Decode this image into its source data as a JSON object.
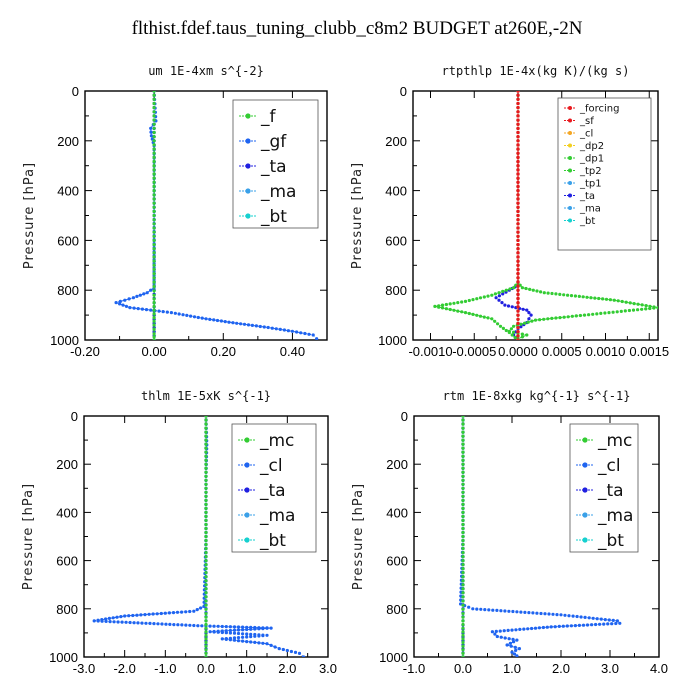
{
  "title": "flthist.fdef.taus_tuning_clubb_c8m2  BUDGET at260E,-2N",
  "colors": {
    "green": "#33cc33",
    "blue": "#1f64f0",
    "red": "#e8191e",
    "orange": "#f4a623",
    "yellow": "#f2cf22",
    "navy": "#2020e0",
    "cyan": "#16d0cf",
    "skyblue": "#3aa0e8"
  },
  "chart_data": [
    {
      "type": "line",
      "title": "um  1E-4xm s^{-2}",
      "ylabel": "Pressure [hPa]",
      "xlim": [
        -0.2,
        0.5
      ],
      "ylim": [
        1000,
        0
      ],
      "xticks": [
        "-0.20",
        "0.00",
        "0.20",
        "0.40"
      ],
      "xtick_values": [
        -0.2,
        0.0,
        0.2,
        0.4
      ],
      "yticks": [
        "0",
        "200",
        "400",
        "600",
        "800",
        "1000"
      ],
      "ytick_values": [
        0,
        200,
        400,
        600,
        800,
        1000
      ],
      "legend_size": "large",
      "series": [
        {
          "name": "_f",
          "color": "green",
          "x": [
            0.0,
            0.0,
            0.0,
            0.0,
            0.0,
            0.0,
            0.0,
            0.0,
            0.0,
            0.0,
            0.0,
            0.0,
            0.0,
            0.0
          ],
          "y": [
            0,
            50,
            150,
            250,
            350,
            450,
            550,
            650,
            750,
            820,
            880,
            940,
            975,
            1000
          ]
        },
        {
          "name": "_gf",
          "color": "blue",
          "x": [
            0.0,
            0.005,
            -0.01,
            -0.008,
            0.0,
            0.0,
            0.0,
            -0.02,
            -0.06,
            -0.11,
            -0.07,
            0.05,
            0.15,
            0.25,
            0.33,
            0.4,
            0.46,
            0.47
          ],
          "y": [
            0,
            120,
            150,
            180,
            220,
            500,
            790,
            810,
            830,
            850,
            870,
            890,
            915,
            935,
            950,
            965,
            980,
            995
          ]
        },
        {
          "name": "_ta",
          "color": "navy",
          "x": [
            0.0,
            0.0,
            0.0,
            0.0,
            0.0,
            0.0
          ],
          "y": [
            0,
            200,
            400,
            600,
            800,
            1000
          ]
        },
        {
          "name": "_ma",
          "color": "skyblue",
          "x": [
            0.0,
            0.0,
            0.0,
            0.0,
            0.0,
            0.0
          ],
          "y": [
            0,
            200,
            400,
            600,
            800,
            1000
          ]
        },
        {
          "name": "_bt",
          "color": "cyan",
          "x": [
            0.0,
            0.0,
            0.0,
            0.0,
            0.0,
            0.0
          ],
          "y": [
            0,
            200,
            400,
            600,
            800,
            1000
          ]
        }
      ]
    },
    {
      "type": "line",
      "title": "rtpthlp  1E-4x(kg K)/(kg s)",
      "ylabel": "Pressure [hPa]",
      "xlim": [
        -0.0012,
        0.0016
      ],
      "ylim": [
        1000,
        0
      ],
      "xticks": [
        "-0.0010",
        "-0.0005",
        "0.0000",
        "0.0005",
        "0.0010",
        "0.0015"
      ],
      "xtick_values": [
        -0.001,
        -0.0005,
        0.0,
        0.0005,
        0.001,
        0.0015
      ],
      "yticks": [
        "0",
        "200",
        "400",
        "600",
        "800",
        "1000"
      ],
      "ytick_values": [
        0,
        200,
        400,
        600,
        800,
        1000
      ],
      "legend_size": "small",
      "series": [
        {
          "name": "_forcing",
          "color": "red",
          "x": [
            0.0,
            0.0,
            0.0,
            0.0,
            0.0,
            0.0
          ],
          "y": [
            0,
            200,
            400,
            600,
            800,
            1000
          ]
        },
        {
          "name": "_sf",
          "color": "red",
          "x": [
            0.0,
            0.0,
            0.0,
            0.0,
            0.0,
            0.0
          ],
          "y": [
            0,
            200,
            400,
            600,
            800,
            1000
          ]
        },
        {
          "name": "_cl",
          "color": "orange",
          "x": [
            0.0,
            0.0,
            0.0,
            0.0,
            0.0,
            0.0
          ],
          "y": [
            0,
            200,
            400,
            600,
            800,
            1000
          ]
        },
        {
          "name": "_dp2",
          "color": "yellow",
          "x": [
            0.0,
            0.0,
            0.0,
            0.0,
            0.0,
            0.0
          ],
          "y": [
            0,
            200,
            400,
            600,
            800,
            1000
          ]
        },
        {
          "name": "_dp1",
          "color": "green",
          "x": [
            0.0,
            5e-05,
            0.0003,
            0.0011,
            0.0016,
            0.0009,
            0.0002,
            -5e-05,
            -0.0001,
            0.0001,
            0.0,
            0.0
          ],
          "y": [
            770,
            790,
            810,
            840,
            870,
            895,
            920,
            945,
            965,
            980,
            995,
            1000
          ]
        },
        {
          "name": "_tp2",
          "color": "green",
          "x": [
            0.0,
            -5e-05,
            -0.0003,
            -0.0006,
            -0.00095,
            -0.0006,
            -0.0003,
            -0.0002,
            -0.0001,
            0.0
          ],
          "y": [
            770,
            790,
            820,
            845,
            865,
            890,
            915,
            945,
            970,
            1000
          ]
        },
        {
          "name": "_tp1",
          "color": "skyblue",
          "x": [
            0.0,
            0.0,
            0.0,
            0.0,
            0.0,
            0.0
          ],
          "y": [
            0,
            200,
            400,
            600,
            800,
            1000
          ]
        },
        {
          "name": "_ta",
          "color": "navy",
          "x": [
            0.0,
            -0.0001,
            -0.00025,
            -0.00015,
            0.0001,
            0.00015,
            0.0001,
            0.0,
            -5e-05,
            0.0
          ],
          "y": [
            780,
            800,
            830,
            860,
            880,
            900,
            930,
            955,
            980,
            1000
          ]
        },
        {
          "name": "_ma",
          "color": "skyblue",
          "x": [
            0.0,
            0.0,
            0.0,
            0.0,
            0.0,
            0.0
          ],
          "y": [
            0,
            200,
            400,
            600,
            800,
            1000
          ]
        },
        {
          "name": "_bt",
          "color": "cyan",
          "x": [
            0.0,
            0.0,
            0.0,
            0.0,
            0.0,
            0.0
          ],
          "y": [
            0,
            200,
            400,
            600,
            800,
            1000
          ]
        }
      ]
    },
    {
      "type": "line",
      "title": "thlm  1E-5xK s^{-1}",
      "ylabel": "Pressure [hPa]",
      "xlim": [
        -3.0,
        3.0
      ],
      "ylim": [
        1000,
        0
      ],
      "xticks": [
        "-3.0",
        "-2.0",
        "-1.0",
        "0.0",
        "1.0",
        "2.0",
        "3.0"
      ],
      "xtick_values": [
        -3,
        -2,
        -1,
        0,
        1,
        2,
        3
      ],
      "yticks": [
        "0",
        "200",
        "400",
        "600",
        "800",
        "1000"
      ],
      "ytick_values": [
        0,
        200,
        400,
        600,
        800,
        1000
      ],
      "legend_size": "large",
      "series": [
        {
          "name": "_mc",
          "color": "green",
          "x": [
            0.0,
            0.0,
            0.0,
            0.0,
            0.0,
            0.0,
            0.0,
            0.0,
            0.0,
            0.0,
            0.0,
            0.0,
            0.0
          ],
          "y": [
            0,
            50,
            150,
            250,
            350,
            450,
            550,
            650,
            750,
            820,
            880,
            940,
            1000
          ]
        },
        {
          "name": "_cl",
          "color": "blue",
          "x": [
            0.0,
            0.02,
            0.0,
            0.0,
            -0.05,
            -0.3,
            -2.0,
            -2.75,
            -0.2,
            1.6,
            0.1,
            1.5,
            0.4,
            1.5,
            1.8,
            2.3,
            2.4
          ],
          "y": [
            0,
            120,
            250,
            500,
            790,
            810,
            830,
            850,
            870,
            880,
            895,
            910,
            925,
            945,
            965,
            985,
            1000
          ]
        },
        {
          "name": "_ta",
          "color": "navy",
          "x": [
            0.0,
            0.0,
            0.0,
            0.0,
            0.0,
            0.0
          ],
          "y": [
            0,
            200,
            400,
            600,
            800,
            1000
          ]
        },
        {
          "name": "_ma",
          "color": "skyblue",
          "x": [
            0.0,
            0.0,
            0.0,
            0.0,
            0.0,
            0.0
          ],
          "y": [
            0,
            200,
            400,
            600,
            800,
            1000
          ]
        },
        {
          "name": "_bt",
          "color": "cyan",
          "x": [
            0.0,
            0.0,
            0.0,
            0.0,
            0.0,
            0.0
          ],
          "y": [
            0,
            200,
            400,
            600,
            800,
            1000
          ]
        }
      ]
    },
    {
      "type": "line",
      "title": "rtm  1E-8xkg kg^{-1} s^{-1}",
      "ylabel": "Pressure [hPa]",
      "xlim": [
        -1.0,
        4.0
      ],
      "ylim": [
        1000,
        0
      ],
      "xticks": [
        "-1.0",
        "0.0",
        "1.0",
        "2.0",
        "3.0",
        "4.0"
      ],
      "xtick_values": [
        -1,
        0,
        1,
        2,
        3,
        4
      ],
      "yticks": [
        "0",
        "200",
        "400",
        "600",
        "800",
        "1000"
      ],
      "ytick_values": [
        0,
        200,
        400,
        600,
        800,
        1000
      ],
      "legend_size": "large",
      "series": [
        {
          "name": "_mc",
          "color": "green",
          "x": [
            0.0,
            0.0,
            0.0,
            0.0,
            0.0,
            0.0,
            0.0,
            0.0,
            0.0,
            0.0,
            0.0,
            0.0,
            0.0
          ],
          "y": [
            0,
            50,
            150,
            250,
            350,
            450,
            550,
            650,
            750,
            820,
            880,
            940,
            1000
          ]
        },
        {
          "name": "_cl",
          "color": "blue",
          "x": [
            0.0,
            0.0,
            0.0,
            -0.05,
            0.2,
            2.0,
            3.15,
            3.2,
            1.8,
            0.6,
            0.7,
            1.1,
            0.9,
            1.15,
            1.0,
            1.1
          ],
          "y": [
            0,
            250,
            500,
            780,
            800,
            825,
            850,
            860,
            875,
            895,
            915,
            930,
            950,
            965,
            980,
            995
          ]
        },
        {
          "name": "_ta",
          "color": "navy",
          "x": [
            0.0,
            0.0,
            0.0,
            0.0,
            0.0,
            0.0
          ],
          "y": [
            0,
            200,
            400,
            600,
            800,
            1000
          ]
        },
        {
          "name": "_ma",
          "color": "skyblue",
          "x": [
            0.0,
            0.0,
            0.0,
            0.0,
            0.0,
            0.0
          ],
          "y": [
            0,
            200,
            400,
            600,
            800,
            1000
          ]
        },
        {
          "name": "_bt",
          "color": "cyan",
          "x": [
            0.0,
            0.0,
            0.0,
            0.0,
            0.0,
            0.0
          ],
          "y": [
            0,
            200,
            400,
            600,
            800,
            1000
          ]
        }
      ]
    }
  ]
}
